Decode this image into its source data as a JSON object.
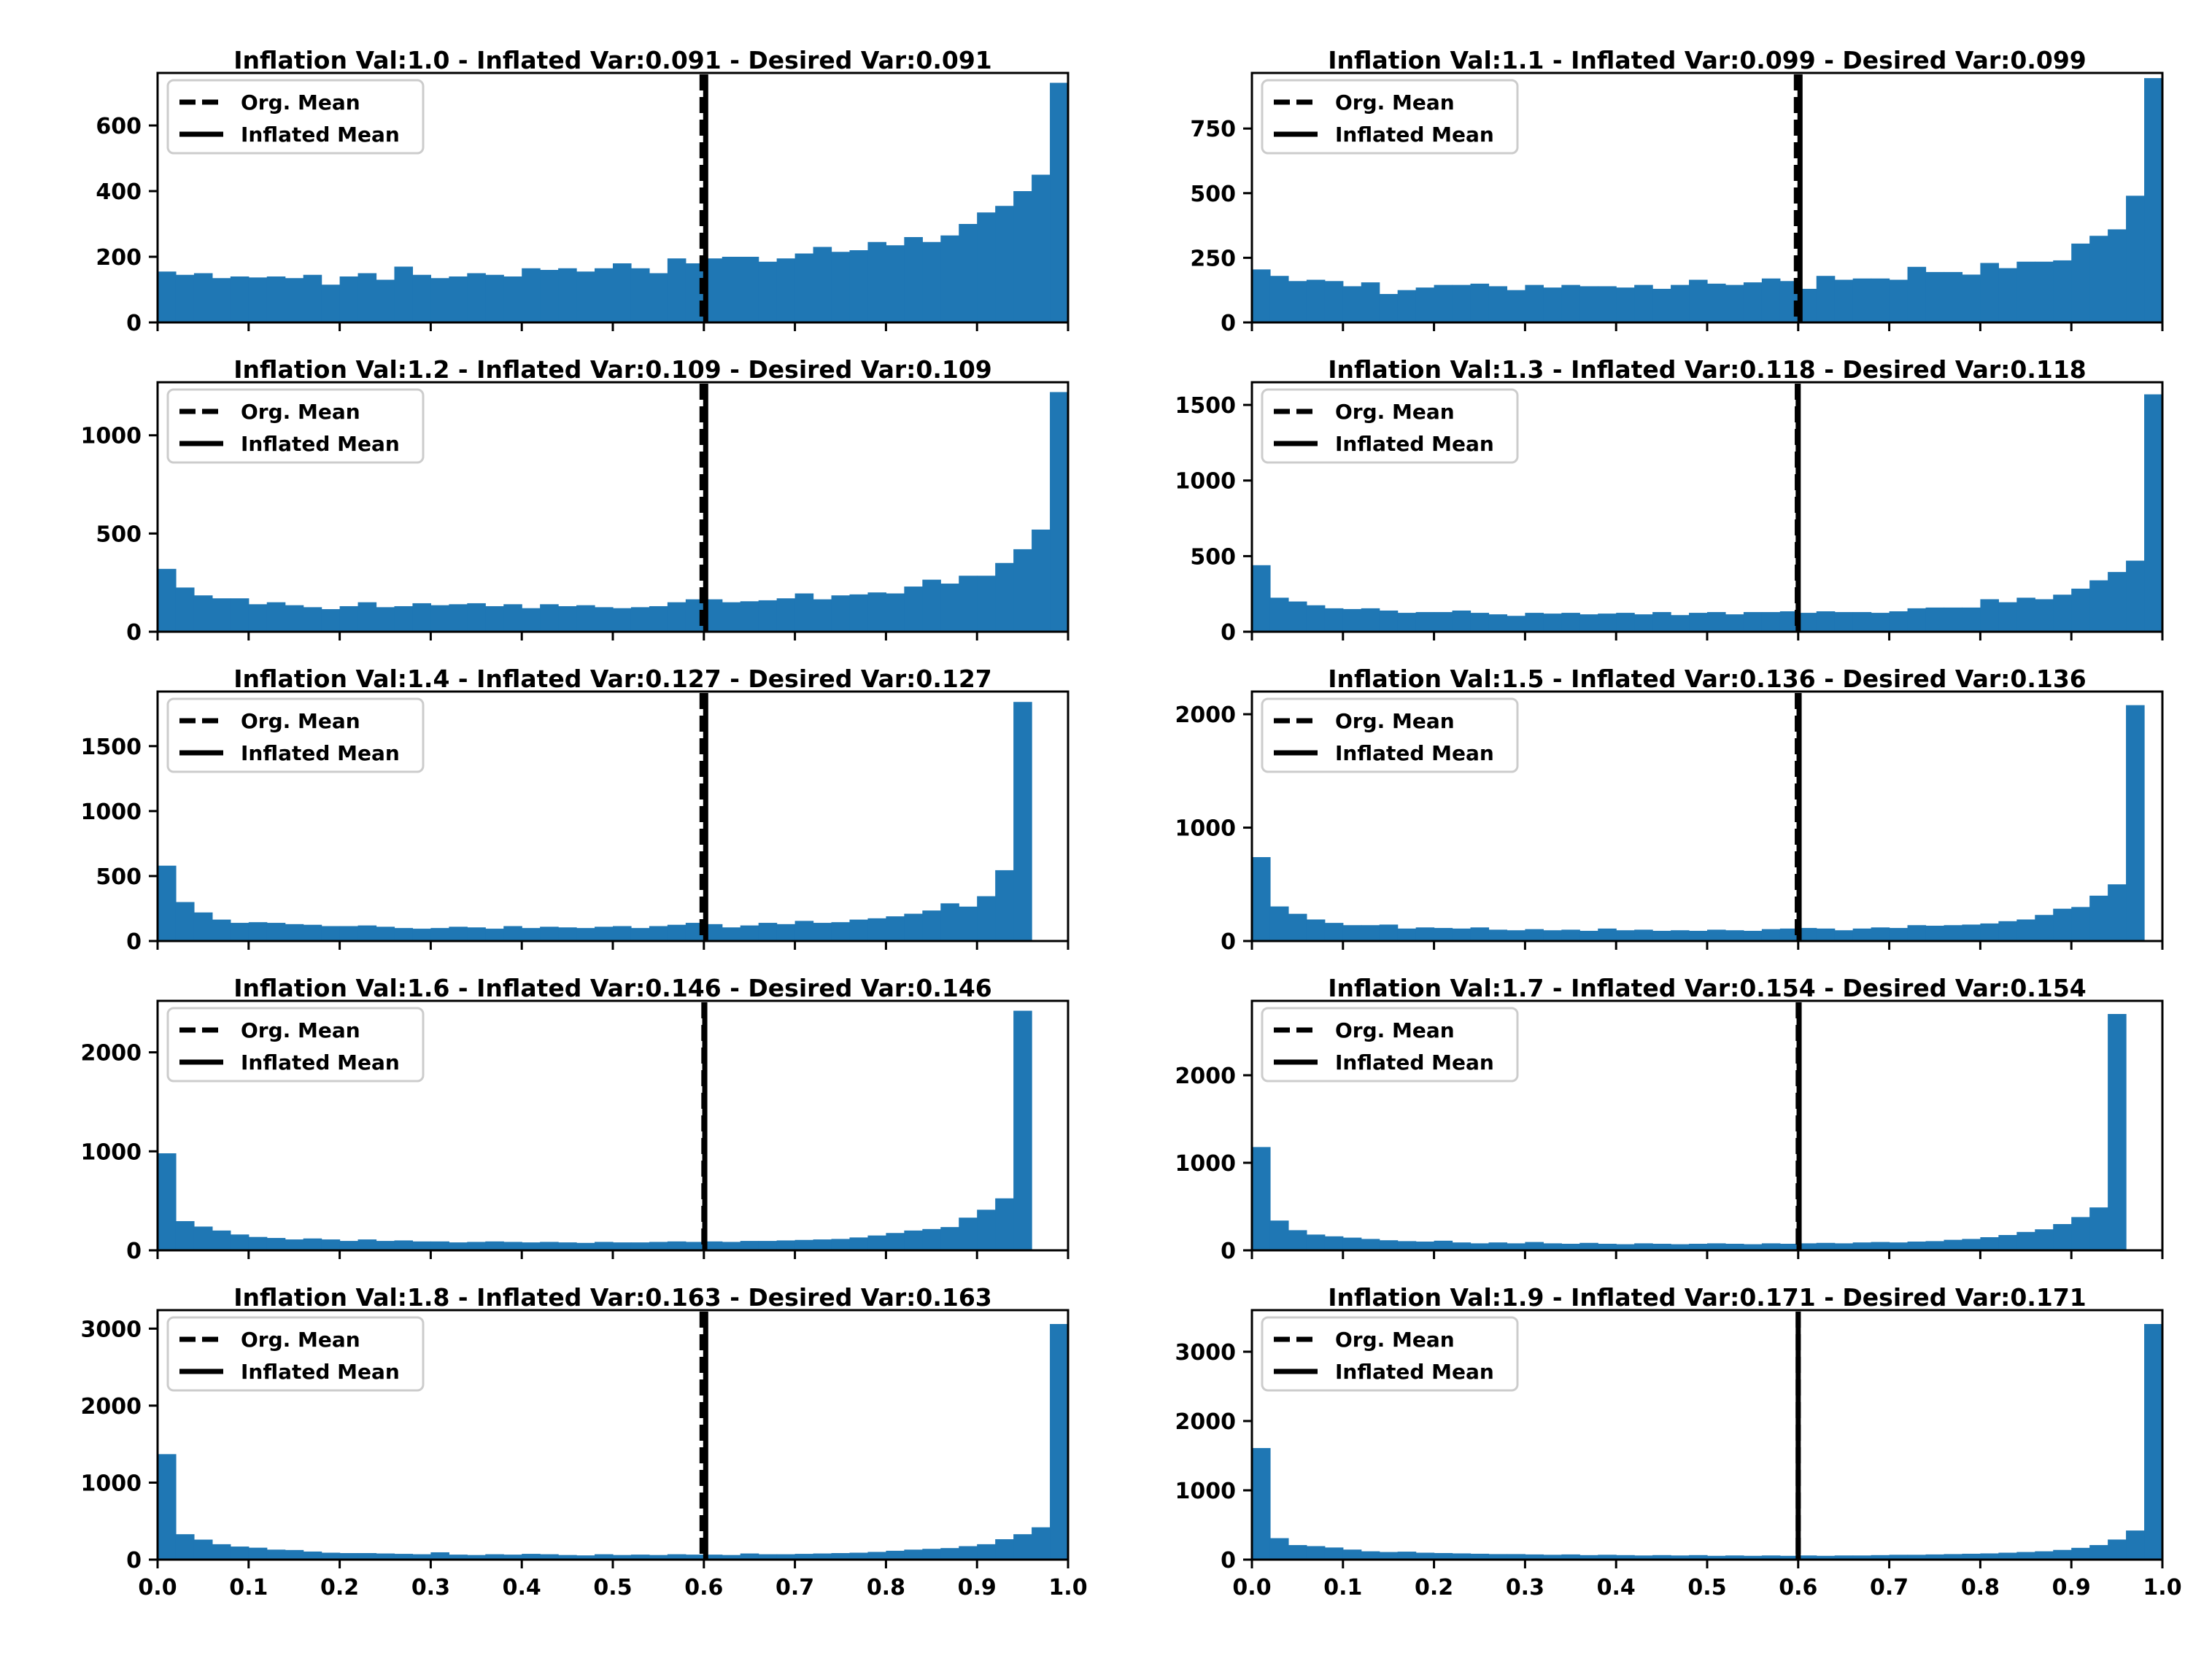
{
  "figure": {
    "background": "#ffffff",
    "bar_color": "#1f77b4"
  },
  "chart_data": [
    {
      "type": "bar",
      "title": "Inflation Val:1.0 - Inflated Var:0.091 - Desired Var:0.091",
      "xlim": [
        0,
        1
      ],
      "ylim": [
        0,
        760
      ],
      "yticks": [
        0,
        200,
        400,
        600
      ],
      "ytick_labels": [
        "0",
        "200",
        "400",
        "600"
      ],
      "xticks": [
        0,
        0.1,
        0.2,
        0.3,
        0.4,
        0.5,
        0.6,
        0.7,
        0.8,
        0.9,
        1.0
      ],
      "xtick_labels": [],
      "bins": 50,
      "values": [
        155,
        145,
        150,
        135,
        140,
        137,
        140,
        135,
        145,
        115,
        140,
        150,
        130,
        170,
        145,
        135,
        140,
        150,
        145,
        140,
        165,
        160,
        165,
        155,
        165,
        180,
        165,
        150,
        195,
        180,
        195,
        200,
        200,
        185,
        195,
        210,
        230,
        215,
        220,
        245,
        235,
        260,
        245,
        265,
        300,
        335,
        355,
        400,
        450,
        730
      ],
      "org_mean": 0.598,
      "inflated_mean": 0.602,
      "legend": [
        "Org. Mean",
        "Inflated Mean"
      ],
      "legend_loc": "upper-left",
      "grid": false
    },
    {
      "type": "bar",
      "title": "Inflation Val:1.1 - Inflated Var:0.099 - Desired Var:0.099",
      "xlim": [
        0,
        1
      ],
      "ylim": [
        0,
        965
      ],
      "yticks": [
        0,
        250,
        500,
        750
      ],
      "ytick_labels": [
        "0",
        "250",
        "500",
        "750"
      ],
      "xticks": [
        0,
        0.1,
        0.2,
        0.3,
        0.4,
        0.5,
        0.6,
        0.7,
        0.8,
        0.9,
        1.0
      ],
      "xtick_labels": [],
      "bins": 50,
      "values": [
        205,
        180,
        160,
        165,
        160,
        140,
        155,
        110,
        125,
        135,
        145,
        145,
        150,
        140,
        125,
        145,
        135,
        145,
        140,
        140,
        135,
        145,
        130,
        145,
        165,
        150,
        145,
        155,
        170,
        160,
        130,
        180,
        165,
        170,
        170,
        165,
        215,
        195,
        195,
        185,
        230,
        210,
        235,
        235,
        240,
        305,
        335,
        360,
        490,
        945
      ],
      "org_mean": 0.598,
      "inflated_mean": 0.602,
      "legend": [
        "Org. Mean",
        "Inflated Mean"
      ],
      "legend_loc": "upper-left",
      "grid": false
    },
    {
      "type": "bar",
      "title": "Inflation Val:1.2 - Inflated Var:0.109 - Desired Var:0.109",
      "xlim": [
        0,
        1
      ],
      "ylim": [
        0,
        1270
      ],
      "yticks": [
        0,
        500,
        1000
      ],
      "ytick_labels": [
        "0",
        "500",
        "1000"
      ],
      "xticks": [
        0,
        0.1,
        0.2,
        0.3,
        0.4,
        0.5,
        0.6,
        0.7,
        0.8,
        0.9,
        1.0
      ],
      "xtick_labels": [],
      "bins": 50,
      "values": [
        320,
        225,
        185,
        170,
        170,
        140,
        150,
        135,
        125,
        115,
        130,
        150,
        125,
        130,
        145,
        135,
        140,
        145,
        130,
        140,
        120,
        140,
        130,
        135,
        125,
        120,
        125,
        130,
        150,
        165,
        165,
        150,
        155,
        160,
        170,
        195,
        165,
        185,
        190,
        200,
        195,
        230,
        265,
        245,
        285,
        285,
        350,
        420,
        520,
        1220
      ],
      "org_mean": 0.598,
      "inflated_mean": 0.602,
      "legend": [
        "Org. Mean",
        "Inflated Mean"
      ],
      "legend_loc": "upper-left",
      "grid": false
    },
    {
      "type": "bar",
      "title": "Inflation Val:1.3 - Inflated Var:0.118 - Desired Var:0.118",
      "xlim": [
        0,
        1
      ],
      "ylim": [
        0,
        1650
      ],
      "yticks": [
        0,
        500,
        1000,
        1500
      ],
      "ytick_labels": [
        "0",
        "500",
        "1000",
        "1500"
      ],
      "xticks": [
        0,
        0.1,
        0.2,
        0.3,
        0.4,
        0.5,
        0.6,
        0.7,
        0.8,
        0.9,
        1.0
      ],
      "xtick_labels": [],
      "bins": 50,
      "values": [
        440,
        225,
        200,
        175,
        155,
        150,
        155,
        140,
        125,
        130,
        130,
        140,
        125,
        115,
        105,
        125,
        120,
        125,
        115,
        120,
        125,
        115,
        130,
        110,
        125,
        130,
        115,
        130,
        130,
        135,
        125,
        135,
        130,
        130,
        125,
        135,
        155,
        160,
        160,
        160,
        215,
        195,
        225,
        215,
        245,
        285,
        340,
        395,
        470,
        1570
      ],
      "org_mean": 0.599,
      "inflated_mean": 0.6,
      "legend": [
        "Org. Mean",
        "Inflated Mean"
      ],
      "legend_loc": "upper-left",
      "grid": false
    },
    {
      "type": "bar",
      "title": "Inflation Val:1.4 - Inflated Var:0.127 - Desired Var:0.127",
      "xlim": [
        0,
        1
      ],
      "ylim": [
        0,
        1920
      ],
      "yticks": [
        0,
        500,
        1000,
        1500
      ],
      "ytick_labels": [
        "0",
        "500",
        "1000",
        "1500"
      ],
      "xticks": [
        0,
        0.1,
        0.2,
        0.3,
        0.4,
        0.5,
        0.6,
        0.7,
        0.8,
        0.9,
        1.0
      ],
      "xtick_labels": [],
      "bins": 50,
      "values": [
        580,
        300,
        220,
        165,
        140,
        145,
        140,
        130,
        125,
        115,
        115,
        120,
        110,
        100,
        95,
        100,
        110,
        105,
        95,
        115,
        100,
        110,
        105,
        100,
        110,
        115,
        100,
        115,
        125,
        140,
        130,
        105,
        120,
        140,
        130,
        155,
        140,
        145,
        165,
        175,
        190,
        210,
        235,
        290,
        265,
        345,
        545,
        1840,
        0,
        0
      ],
      "values_note": "",
      "org_mean": 0.598,
      "inflated_mean": 0.602,
      "legend": [
        "Org. Mean",
        "Inflated Mean"
      ],
      "legend_loc": "upper-left",
      "grid": false
    },
    {
      "type": "bar",
      "title": "Inflation Val:1.5 - Inflated Var:0.136 - Desired Var:0.136",
      "xlim": [
        0,
        1
      ],
      "ylim": [
        0,
        2200
      ],
      "yticks": [
        0,
        1000,
        2000
      ],
      "ytick_labels": [
        "0",
        "1000",
        "2000"
      ],
      "xticks": [
        0,
        0.1,
        0.2,
        0.3,
        0.4,
        0.5,
        0.6,
        0.7,
        0.8,
        0.9,
        1.0
      ],
      "xtick_labels": [],
      "bins": 50,
      "values": [
        740,
        305,
        240,
        190,
        160,
        140,
        140,
        145,
        110,
        120,
        115,
        110,
        120,
        100,
        95,
        105,
        95,
        100,
        90,
        110,
        95,
        100,
        90,
        95,
        90,
        100,
        95,
        90,
        105,
        110,
        115,
        110,
        95,
        110,
        120,
        115,
        140,
        135,
        140,
        145,
        155,
        175,
        190,
        230,
        285,
        300,
        400,
        500,
        2080,
        0
      ],
      "org_mean": 0.599,
      "inflated_mean": 0.601,
      "legend": [
        "Org. Mean",
        "Inflated Mean"
      ],
      "legend_loc": "upper-left",
      "grid": false
    },
    {
      "type": "bar",
      "title": "Inflation Val:1.6 - Inflated Var:0.146 - Desired Var:0.146",
      "xlim": [
        0,
        1
      ],
      "ylim": [
        0,
        2520
      ],
      "yticks": [
        0,
        1000,
        2000
      ],
      "ytick_labels": [
        "0",
        "1000",
        "2000"
      ],
      "xticks": [
        0,
        0.1,
        0.2,
        0.3,
        0.4,
        0.5,
        0.6,
        0.7,
        0.8,
        0.9,
        1.0
      ],
      "xtick_labels": [],
      "bins": 50,
      "values": [
        980,
        295,
        240,
        200,
        160,
        135,
        125,
        110,
        120,
        110,
        95,
        110,
        95,
        100,
        90,
        90,
        80,
        85,
        90,
        85,
        80,
        85,
        80,
        75,
        85,
        80,
        80,
        85,
        90,
        85,
        90,
        85,
        95,
        95,
        100,
        105,
        110,
        115,
        130,
        150,
        175,
        200,
        215,
        235,
        330,
        410,
        525,
        2420,
        0,
        0
      ],
      "org_mean": 0.6,
      "inflated_mean": 0.601,
      "legend": [
        "Org. Mean",
        "Inflated Mean"
      ],
      "legend_loc": "upper-left",
      "grid": false
    },
    {
      "type": "bar",
      "title": "Inflation Val:1.7 - Inflated Var:0.154 - Desired Var:0.154",
      "xlim": [
        0,
        1
      ],
      "ylim": [
        0,
        2850
      ],
      "yticks": [
        0,
        1000,
        2000
      ],
      "ytick_labels": [
        "0",
        "1000",
        "2000"
      ],
      "xticks": [
        0,
        0.1,
        0.2,
        0.3,
        0.4,
        0.5,
        0.6,
        0.7,
        0.8,
        0.9,
        1.0
      ],
      "xtick_labels": [],
      "bins": 50,
      "values": [
        1180,
        340,
        230,
        180,
        160,
        145,
        130,
        115,
        105,
        100,
        110,
        90,
        80,
        90,
        80,
        95,
        80,
        75,
        85,
        75,
        70,
        80,
        75,
        70,
        75,
        80,
        75,
        70,
        80,
        75,
        80,
        85,
        80,
        90,
        95,
        90,
        100,
        105,
        120,
        130,
        150,
        175,
        210,
        240,
        300,
        380,
        490,
        2700,
        0,
        0
      ],
      "org_mean": 0.6,
      "inflated_mean": 0.601,
      "legend": [
        "Org. Mean",
        "Inflated Mean"
      ],
      "legend_loc": "upper-left",
      "grid": false
    },
    {
      "type": "bar",
      "title": "Inflation Val:1.8 - Inflated Var:0.163 - Desired Var:0.163",
      "xlim": [
        0,
        1
      ],
      "ylim": [
        0,
        3240
      ],
      "yticks": [
        0,
        1000,
        2000,
        3000
      ],
      "ytick_labels": [
        "0",
        "1000",
        "2000",
        "3000"
      ],
      "xticks": [
        0,
        0.1,
        0.2,
        0.3,
        0.4,
        0.5,
        0.6,
        0.7,
        0.8,
        0.9,
        1.0
      ],
      "xtick_labels": [],
      "bins": 50,
      "values": [
        1370,
        330,
        260,
        200,
        170,
        155,
        130,
        125,
        105,
        90,
        85,
        85,
        80,
        75,
        70,
        95,
        65,
        60,
        70,
        65,
        75,
        70,
        60,
        55,
        70,
        60,
        65,
        60,
        70,
        65,
        65,
        60,
        80,
        70,
        70,
        75,
        80,
        85,
        90,
        100,
        115,
        130,
        140,
        150,
        175,
        200,
        265,
        330,
        420,
        3060
      ],
      "org_mean": 0.598,
      "inflated_mean": 0.602,
      "legend": [
        "Org. Mean",
        "Inflated Mean"
      ],
      "legend_loc": "upper-left",
      "grid": false
    },
    {
      "type": "bar",
      "title": "Inflation Val:1.9 - Inflated Var:0.171 - Desired Var:0.171",
      "xlim": [
        0,
        1
      ],
      "ylim": [
        0,
        3600
      ],
      "yticks": [
        0,
        1000,
        2000,
        3000
      ],
      "ytick_labels": [
        "0",
        "1000",
        "2000",
        "3000"
      ],
      "xticks": [
        0,
        0.1,
        0.2,
        0.3,
        0.4,
        0.5,
        0.6,
        0.7,
        0.8,
        0.9,
        1.0
      ],
      "xtick_labels": [],
      "bins": 50,
      "values": [
        1610,
        310,
        210,
        195,
        175,
        145,
        120,
        110,
        115,
        100,
        95,
        90,
        85,
        80,
        80,
        75,
        70,
        75,
        65,
        70,
        65,
        60,
        65,
        60,
        65,
        55,
        60,
        55,
        60,
        55,
        60,
        55,
        60,
        60,
        65,
        70,
        70,
        75,
        80,
        85,
        90,
        100,
        110,
        120,
        140,
        170,
        210,
        290,
        420,
        3400
      ],
      "org_mean": 0.6,
      "inflated_mean": 0.6,
      "legend": [
        "Org. Mean",
        "Inflated Mean"
      ],
      "legend_loc": "upper-left",
      "grid": false
    }
  ],
  "bottom_xtick_labels": [
    "0.0",
    "0.1",
    "0.2",
    "0.3",
    "0.4",
    "0.5",
    "0.6",
    "0.7",
    "0.8",
    "0.9",
    "1.0"
  ]
}
